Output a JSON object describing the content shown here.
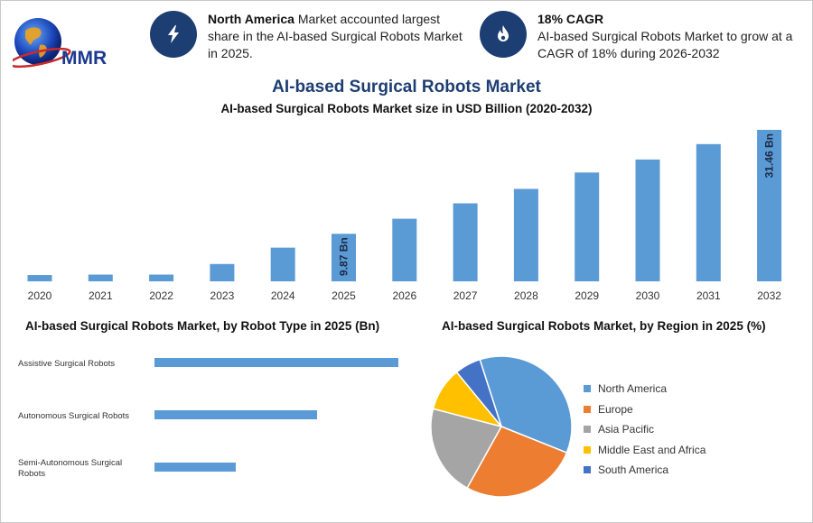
{
  "logo": {
    "text": "MMR",
    "icon": "globe-logo"
  },
  "cards": [
    {
      "icon": "lightning-icon",
      "bold": "North America",
      "text": " Market accounted largest share in the AI-based Surgical Robots Market in 2025."
    },
    {
      "icon": "flame-icon",
      "bold": "18% CAGR",
      "text": "AI-based Surgical Robots Market to grow at a CAGR of 18% during 2026-2032"
    }
  ],
  "title": "AI-based Surgical Robots Market",
  "chart_data": [
    {
      "type": "bar",
      "title": "AI-based Surgical Robots Market size in USD Billion (2020-2032)",
      "categories": [
        "2020",
        "2021",
        "2022",
        "2023",
        "2024",
        "2025",
        "2026",
        "2027",
        "2028",
        "2029",
        "2030",
        "2031",
        "2032"
      ],
      "values": [
        1.3,
        1.4,
        1.4,
        3.6,
        7.0,
        9.87,
        13.0,
        16.2,
        19.2,
        22.6,
        25.3,
        28.5,
        31.46
      ],
      "data_labels": {
        "5": "9.87 Bn",
        "12": "31.46 Bn"
      },
      "color": "#5b9bd5",
      "ylim": [
        0,
        32
      ]
    },
    {
      "type": "bar",
      "orientation": "horizontal",
      "title": "AI-based Surgical Robots Market, by Robot Type in 2025 (Bn)",
      "categories": [
        "Assistive Surgical Robots",
        "Autonomous Surgical Robots",
        "Semi-Autonomous Surgical Robots"
      ],
      "values": [
        5.25,
        3.5,
        1.75
      ],
      "color": "#5b9bd5",
      "xlim": [
        0,
        5.25
      ]
    },
    {
      "type": "pie",
      "title": "AI-based Surgical Robots Market, by Region in 2025 (%)",
      "labels": [
        "North America",
        "Europe",
        "Asia Pacific",
        "Middle East and Africa",
        "South America"
      ],
      "values": [
        36,
        27,
        21,
        10,
        6
      ],
      "colors": [
        "#5b9bd5",
        "#ed7d31",
        "#a5a5a5",
        "#ffc000",
        "#4472c4"
      ]
    }
  ]
}
